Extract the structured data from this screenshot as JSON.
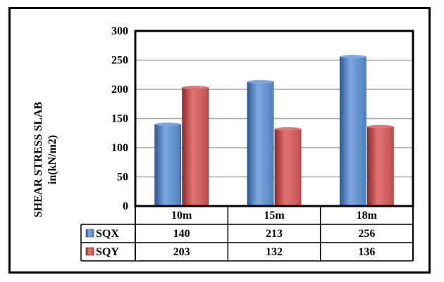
{
  "colors": {
    "sqx": "#4f81bd",
    "sqx_light": "#7fa8e0",
    "sqx_dark": "#2a5a9a",
    "sqy": "#c0504d",
    "sqy_light": "#e07572",
    "sqy_dark": "#902a28"
  },
  "chart_data": {
    "type": "bar",
    "title": "",
    "xlabel": "",
    "ylabel_line1": "SHEAR  STRESS SLAB",
    "ylabel_line2": "in(kN/m2)",
    "categories": [
      "10m",
      "15m",
      "18m"
    ],
    "ylim": [
      0,
      300
    ],
    "yticks": [
      0,
      50,
      100,
      150,
      200,
      250,
      300
    ],
    "grid": true,
    "legend": "data-table",
    "series": [
      {
        "name": "SQX",
        "values": [
          140,
          213,
          256
        ],
        "color_key": "sqx"
      },
      {
        "name": "SQY",
        "values": [
          203,
          132,
          136
        ],
        "color_key": "sqy"
      }
    ]
  }
}
